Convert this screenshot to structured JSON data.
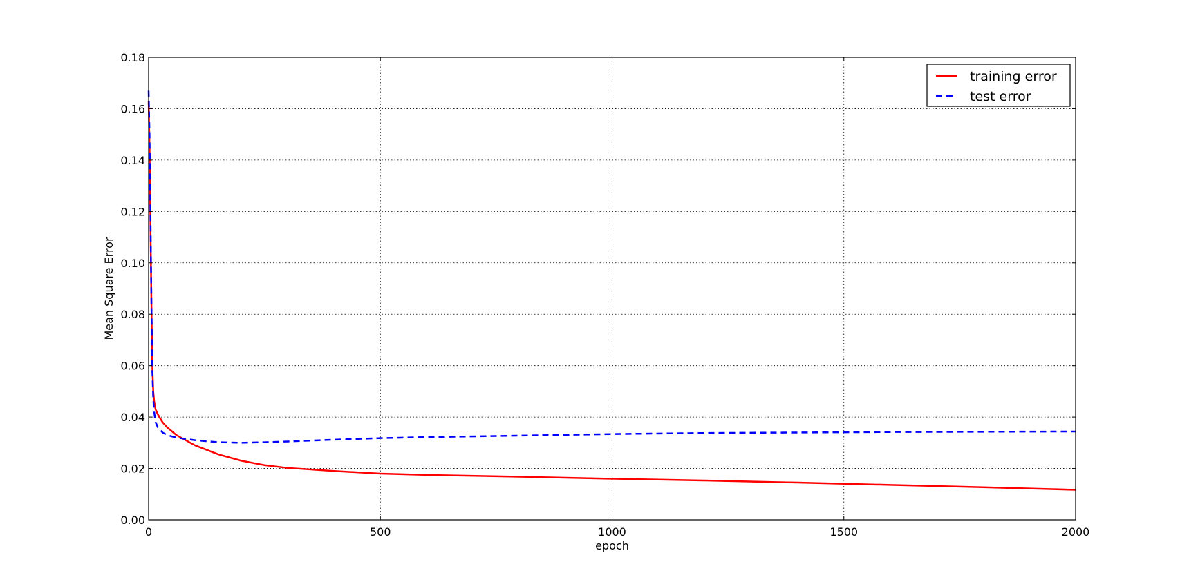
{
  "chart_data": {
    "type": "line",
    "xlabel": "epoch",
    "ylabel": "Mean Square Error",
    "xlim": [
      0,
      2000
    ],
    "ylim": [
      0,
      0.18
    ],
    "xticks": [
      0,
      500,
      1000,
      1500,
      2000
    ],
    "xtick_labels": [
      "0",
      "500",
      "1000",
      "1500",
      "2000"
    ],
    "yticks": [
      0,
      0.02,
      0.04,
      0.06,
      0.08,
      0.1,
      0.12,
      0.14,
      0.16,
      0.18
    ],
    "ytick_labels": [
      "0.00",
      "0.02",
      "0.04",
      "0.06",
      "0.08",
      "0.10",
      "0.12",
      "0.14",
      "0.16",
      "0.18"
    ],
    "grid": true,
    "legend_position": "top-right",
    "series": [
      {
        "name": "training error",
        "color": "#ff0000",
        "style": "solid",
        "x": [
          0,
          2,
          4,
          6,
          8,
          10,
          12,
          15,
          20,
          30,
          40,
          60,
          80,
          100,
          150,
          200,
          250,
          300,
          400,
          500,
          600,
          800,
          1000,
          1200,
          1400,
          1600,
          1800,
          2000
        ],
        "y": [
          0.163,
          0.145,
          0.115,
          0.085,
          0.06,
          0.05,
          0.046,
          0.043,
          0.041,
          0.038,
          0.036,
          0.033,
          0.031,
          0.029,
          0.0255,
          0.023,
          0.0213,
          0.0202,
          0.019,
          0.018,
          0.0175,
          0.0168,
          0.016,
          0.0153,
          0.0145,
          0.0136,
          0.0127,
          0.0117
        ]
      },
      {
        "name": "test error",
        "color": "#0000ff",
        "style": "dashed",
        "x": [
          0,
          2,
          4,
          6,
          8,
          10,
          12,
          15,
          20,
          30,
          40,
          60,
          80,
          100,
          150,
          200,
          250,
          300,
          400,
          500,
          600,
          800,
          1000,
          1200,
          1400,
          1600,
          1800,
          2000
        ],
        "y": [
          0.167,
          0.15,
          0.12,
          0.085,
          0.058,
          0.047,
          0.042,
          0.038,
          0.036,
          0.034,
          0.033,
          0.032,
          0.0315,
          0.031,
          0.0302,
          0.03,
          0.0302,
          0.0305,
          0.0312,
          0.0318,
          0.0322,
          0.0328,
          0.0334,
          0.0338,
          0.034,
          0.0342,
          0.0343,
          0.0344
        ]
      }
    ]
  }
}
